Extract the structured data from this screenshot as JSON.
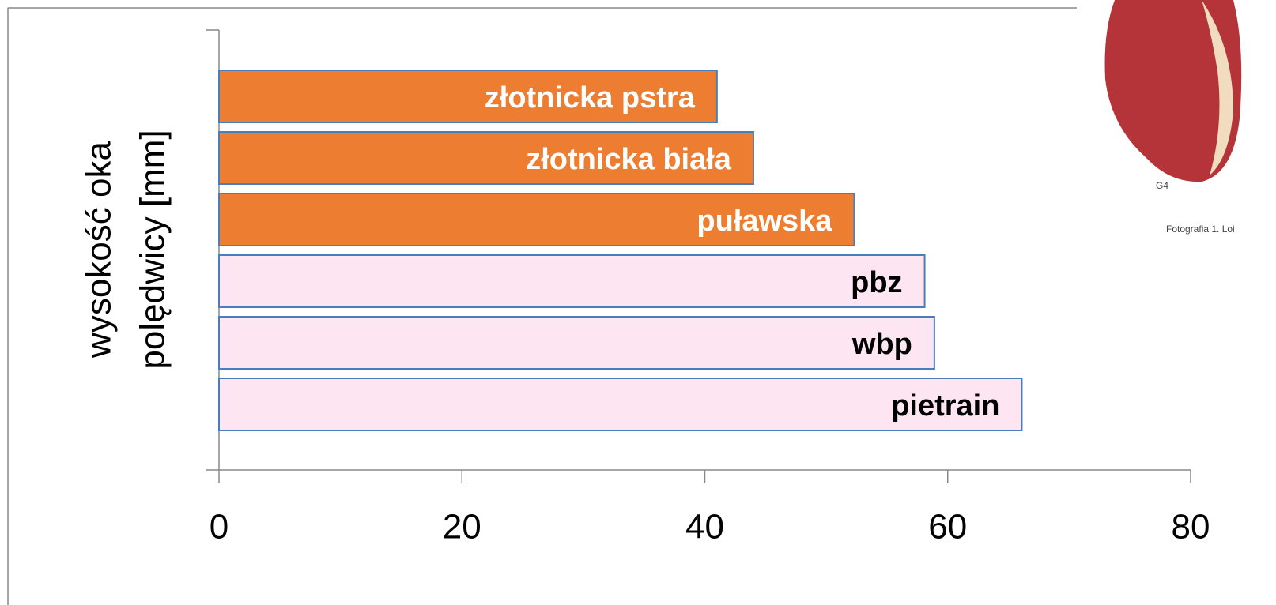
{
  "chart_data": {
    "type": "barh",
    "ylabel": [
      "wysokość oka",
      "polędwicy [mm]"
    ],
    "categories": [
      "złotnicka pstra",
      "złotnicka biała",
      "puławska",
      "pbz",
      "wbp",
      "pietrain"
    ],
    "values": [
      41,
      44,
      52.3,
      58.1,
      58.9,
      66.1
    ],
    "colors": [
      "#ed7d31",
      "#ed7d31",
      "#ed7d31",
      "#fde6f2",
      "#fde6f2",
      "#fde6f2"
    ],
    "label_colors": [
      "#ffffff",
      "#ffffff",
      "#ffffff",
      "#000000",
      "#000000",
      "#000000"
    ],
    "xlim": [
      0,
      80
    ],
    "xticks": [
      0,
      20,
      40,
      60,
      80
    ]
  },
  "photo": {
    "labels": [
      "G4",
      "Fotografia 1. Loi"
    ]
  }
}
